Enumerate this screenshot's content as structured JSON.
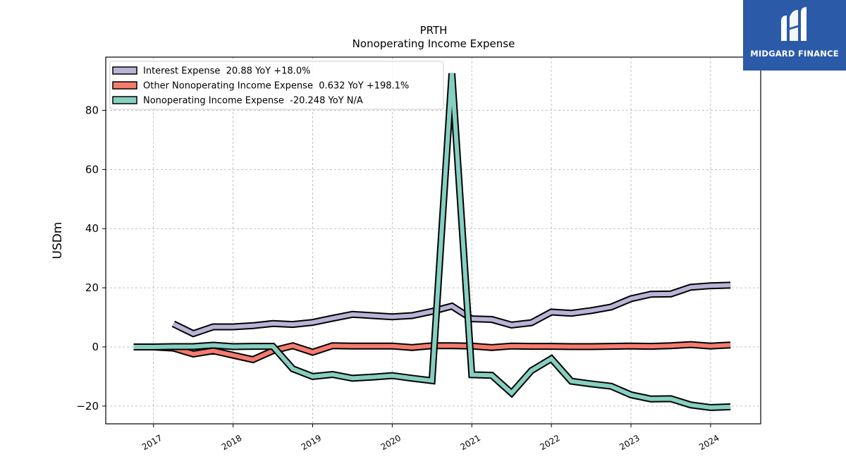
{
  "chart_data": {
    "type": "line",
    "title": "PRTH",
    "subtitle": "Nonoperating Income Expense",
    "ylabel": "USDm",
    "xlabel": "",
    "ylim": [
      -26,
      98
    ],
    "xlim": [
      2016.4,
      2024.63
    ],
    "yticks": [
      -20,
      0,
      20,
      40,
      60,
      80
    ],
    "xticks": [
      "2017",
      "2018",
      "2019",
      "2020",
      "2021",
      "2022",
      "2023",
      "2024"
    ],
    "grid": true,
    "legend_position": "top-left",
    "series": [
      {
        "name": "Interest Expense  20.88 YoY +18.0%",
        "color": "#b9b3d6",
        "x": [
          2017.25,
          2017.5,
          2017.75,
          2018.0,
          2018.25,
          2018.5,
          2018.75,
          2019.0,
          2019.25,
          2019.5,
          2019.75,
          2020.0,
          2020.25,
          2020.5,
          2020.75,
          2021.0,
          2021.25,
          2021.5,
          2021.75,
          2022.0,
          2022.25,
          2022.5,
          2022.75,
          2023.0,
          2023.25,
          2023.5,
          2023.75,
          2024.0,
          2024.25
        ],
        "values": [
          7.8,
          4.5,
          6.8,
          6.8,
          7.2,
          7.9,
          7.6,
          8.3,
          9.7,
          11.0,
          10.6,
          10.2,
          10.6,
          12.0,
          13.8,
          9.5,
          9.3,
          7.4,
          8.2,
          11.8,
          11.4,
          12.3,
          13.5,
          16.3,
          17.8,
          17.9,
          20.2,
          20.7,
          20.88
        ]
      },
      {
        "name": "Other Nonoperating Income Expense  0.632 YoY +198.1%",
        "color": "#f47c6e",
        "x": [
          2016.75,
          2017.0,
          2017.25,
          2017.5,
          2017.75,
          2018.0,
          2018.25,
          2018.5,
          2018.75,
          2019.0,
          2019.25,
          2019.5,
          2019.75,
          2020.0,
          2020.25,
          2020.5,
          2020.75,
          2021.0,
          2021.25,
          2021.5,
          2021.75,
          2022.0,
          2022.25,
          2022.5,
          2022.75,
          2023.0,
          2023.25,
          2023.5,
          2023.75,
          2024.0,
          2024.25
        ],
        "values": [
          0.0,
          0.0,
          -0.4,
          -2.4,
          -1.3,
          -2.8,
          -4.3,
          -1.3,
          0.4,
          -1.8,
          0.4,
          0.3,
          0.3,
          0.3,
          -0.2,
          0.4,
          0.4,
          0.3,
          -0.2,
          0.3,
          0.2,
          0.2,
          0.1,
          0.1,
          0.2,
          0.3,
          0.2,
          0.4,
          0.8,
          0.3,
          0.632
        ]
      },
      {
        "name": "Nonoperating Income Expense  -20.248 YoY N/A",
        "color": "#86cfc0",
        "x": [
          2016.75,
          2017.0,
          2017.25,
          2017.5,
          2017.75,
          2018.0,
          2018.25,
          2018.5,
          2018.75,
          2019.0,
          2019.25,
          2019.5,
          2019.75,
          2020.0,
          2020.25,
          2020.5,
          2020.75,
          2021.0,
          2021.25,
          2021.5,
          2021.75,
          2022.0,
          2022.25,
          2022.5,
          2022.75,
          2023.0,
          2023.25,
          2023.5,
          2023.75,
          2024.0,
          2024.25
        ],
        "values": [
          0.0,
          0.0,
          0.1,
          0.1,
          0.6,
          0.1,
          0.2,
          0.2,
          -7.4,
          -10.0,
          -9.3,
          -10.6,
          -10.2,
          -9.7,
          -10.6,
          -11.4,
          92.5,
          -9.4,
          -9.6,
          -15.6,
          -8.0,
          -4.0,
          -11.6,
          -12.5,
          -13.3,
          -16.2,
          -17.6,
          -17.5,
          -19.6,
          -20.5,
          -20.248
        ]
      }
    ]
  },
  "logo": {
    "text": "MIDGARD FINANCE"
  }
}
